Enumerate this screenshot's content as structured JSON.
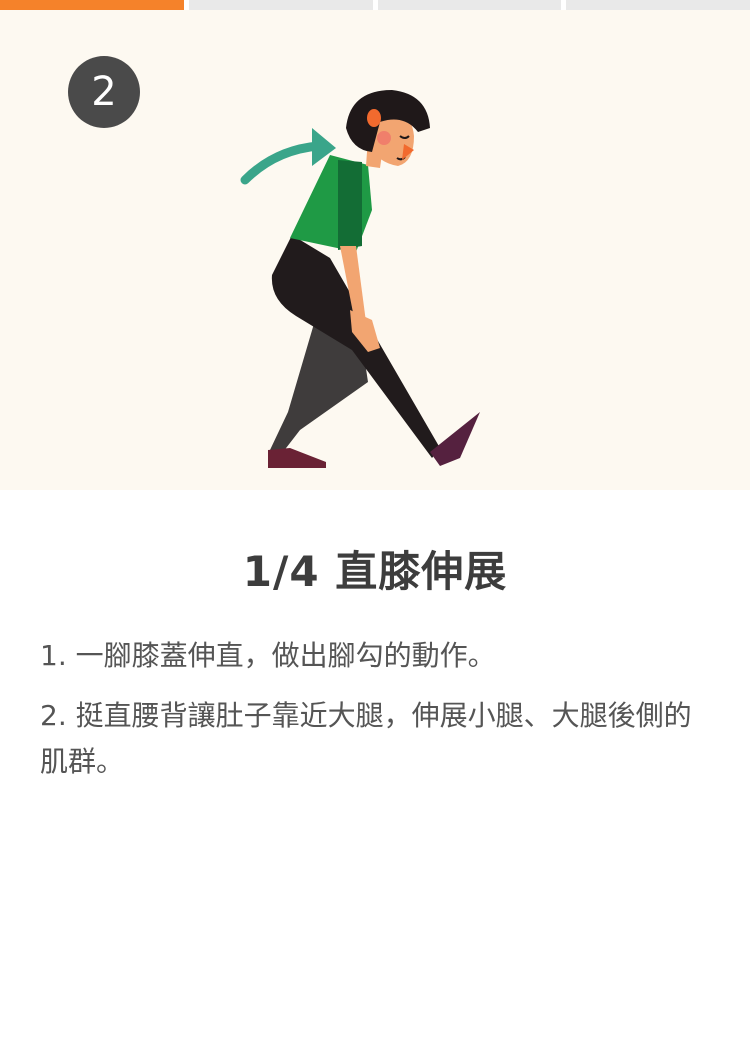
{
  "progress": {
    "total_steps": 4,
    "current_step": 1
  },
  "hero": {
    "step_number": "2",
    "illustration_icon": "woman-hamstring-stretch-illustration",
    "background_color": "#fdf9f1"
  },
  "exercise": {
    "title": "1/4 直膝伸展",
    "instructions": [
      "1. 一腳膝蓋伸直，做出腳勾的動作。",
      "2. 挺直腰背讓肚子靠近大腿，伸展小腿、大腿後側的肌群。"
    ]
  },
  "colors": {
    "accent": "#f5822a",
    "inactive_segment": "#e9e9e9",
    "badge": "#4a4a4a"
  }
}
